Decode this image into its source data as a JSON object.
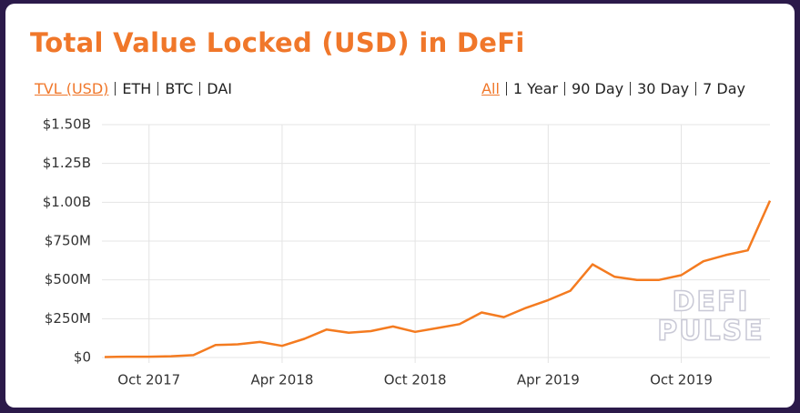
{
  "title": "Total Value Locked (USD) in DeFi",
  "tabs_left": [
    "TVL (USD)",
    "ETH",
    "BTC",
    "DAI"
  ],
  "tabs_right": [
    "All",
    "1 Year",
    "90 Day",
    "30 Day",
    "7 Day"
  ],
  "watermark": [
    "DEFI",
    "PULSE"
  ],
  "chart_data": {
    "type": "line",
    "x": [
      "2017-08",
      "2017-09",
      "2017-10",
      "2017-11",
      "2017-12",
      "2018-01",
      "2018-02",
      "2018-03",
      "2018-04",
      "2018-05",
      "2018-06",
      "2018-07",
      "2018-08",
      "2018-09",
      "2018-10",
      "2018-11",
      "2018-12",
      "2019-01",
      "2019-02",
      "2019-03",
      "2019-04",
      "2019-05",
      "2019-06",
      "2019-07",
      "2019-08",
      "2019-09",
      "2019-10",
      "2019-11",
      "2019-12",
      "2020-01",
      "2020-02"
    ],
    "series": [
      {
        "name": "TVL (USD)",
        "color": "#f47b20",
        "values": [
          3000000,
          5000000,
          5000000,
          8000000,
          15000000,
          80000000,
          85000000,
          100000000,
          75000000,
          120000000,
          180000000,
          160000000,
          170000000,
          200000000,
          165000000,
          190000000,
          215000000,
          290000000,
          260000000,
          320000000,
          370000000,
          430000000,
          600000000,
          520000000,
          500000000,
          500000000,
          530000000,
          620000000,
          660000000,
          690000000,
          1010000000
        ]
      }
    ],
    "xlim": [
      "2017-08",
      "2020-02"
    ],
    "xticks": [
      {
        "value": "2017-10",
        "label": "Oct 2017"
      },
      {
        "value": "2018-04",
        "label": "Apr 2018"
      },
      {
        "value": "2018-10",
        "label": "Oct 2018"
      },
      {
        "value": "2019-04",
        "label": "Apr 2019"
      },
      {
        "value": "2019-10",
        "label": "Oct 2019"
      }
    ],
    "ylim": [
      0,
      1500000000
    ],
    "yticks": [
      {
        "value": 0,
        "label": "$0"
      },
      {
        "value": 250000000,
        "label": "$250M"
      },
      {
        "value": 500000000,
        "label": "$500M"
      },
      {
        "value": 750000000,
        "label": "$750M"
      },
      {
        "value": 1000000000,
        "label": "$1.00B"
      },
      {
        "value": 1250000000,
        "label": "$1.25B"
      },
      {
        "value": 1500000000,
        "label": "$1.50B"
      }
    ],
    "grid": true
  }
}
